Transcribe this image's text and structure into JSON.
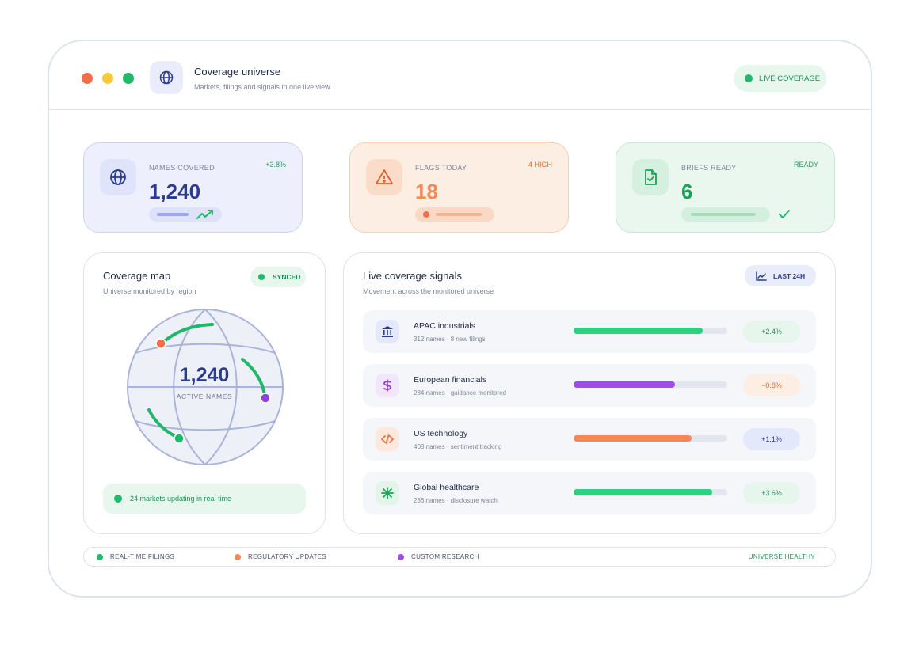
{
  "header": {
    "title": "Coverage universe",
    "subtitle": "Markets, filings and signals in one live view",
    "status": "LIVE COVERAGE",
    "icon": "globe-icon"
  },
  "stats": [
    {
      "label": "NAMES COVERED",
      "value": "1,240",
      "tag": "+3.8%",
      "icon": "globe-icon",
      "progress": 0.43
    },
    {
      "label": "FLAGS TODAY",
      "value": "18",
      "tag": "4 HIGH",
      "icon": "warning-icon",
      "progress": 0.58
    },
    {
      "label": "BRIEFS READY",
      "value": "6",
      "tag": "READY",
      "icon": "file-check-icon",
      "progress": 0.73
    }
  ],
  "map": {
    "title": "Coverage map",
    "subtitle": "Universe monitored by region",
    "badge": "SYNCED",
    "value": "1,240",
    "caption": "ACTIVE NAMES",
    "status": "24 markets updating in real time"
  },
  "signals": {
    "title": "Live coverage signals",
    "subtitle": "Movement across the monitored universe",
    "range_button": "LAST 24H",
    "rows": [
      {
        "name": "APAC industrials",
        "meta": "312 names · 8 new filings",
        "change": "+2.4%",
        "progress": 0.84,
        "icon": "bank-icon",
        "color": "#2ecf7f",
        "trend": "up"
      },
      {
        "name": "European financials",
        "meta": "284 names · guidance monitored",
        "change": "−0.8%",
        "progress": 0.66,
        "icon": "dollar-icon",
        "color": "#9c4fe0",
        "trend": "down"
      },
      {
        "name": "US technology",
        "meta": "408 names · sentiment tracking",
        "change": "+1.1%",
        "progress": 0.77,
        "icon": "code-icon",
        "color": "#f5865a",
        "trend": "neutral"
      },
      {
        "name": "Global healthcare",
        "meta": "236 names · disclosure watch",
        "change": "+3.6%",
        "progress": 0.9,
        "icon": "asterisk-icon",
        "color": "#2ecf7f",
        "trend": "up"
      }
    ]
  },
  "legend": {
    "items": [
      {
        "label": "REAL-TIME FILINGS",
        "color": "#23b96b"
      },
      {
        "label": "REGULATORY UPDATES",
        "color": "#f5865a"
      },
      {
        "label": "CUSTOM RESEARCH",
        "color": "#9c4fe0"
      }
    ],
    "health": "UNIVERSE HEALTHY"
  }
}
